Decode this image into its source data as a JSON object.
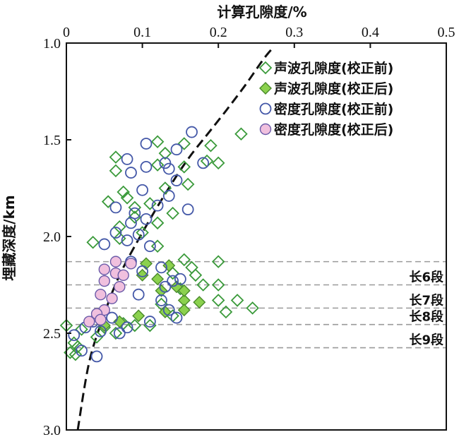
{
  "chart_data": {
    "type": "scatter",
    "title": "",
    "xlabel": "计算孔隙度/%",
    "ylabel": "埋藏深度/km",
    "xlim": [
      0,
      0.5
    ],
    "ylim": [
      1.0,
      3.0
    ],
    "y_inverted": true,
    "x_axis_position": "top",
    "x_ticks": [
      "0",
      "0.1",
      "0.2",
      "0.3",
      "0.4",
      "0.5"
    ],
    "y_ticks": [
      "1.0",
      "1.5",
      "2.0",
      "2.5",
      "3.0"
    ],
    "legend_position": "top-right",
    "series": [
      {
        "name": "声波孔隙度(校正前)",
        "marker": "diamond-open",
        "color": "#3a9a3a",
        "points": [
          [
            0.12,
            1.51
          ],
          [
            0.065,
            1.59
          ],
          [
            0.13,
            1.57
          ],
          [
            0.155,
            1.52
          ],
          [
            0.19,
            1.53
          ],
          [
            0.23,
            1.47
          ],
          [
            0.065,
            1.66
          ],
          [
            0.12,
            1.63
          ],
          [
            0.155,
            1.64
          ],
          [
            0.2,
            1.62
          ],
          [
            0.185,
            1.61
          ],
          [
            0.16,
            1.73
          ],
          [
            0.075,
            1.77
          ],
          [
            0.13,
            1.75
          ],
          [
            0.08,
            1.8
          ],
          [
            0.055,
            1.82
          ],
          [
            0.09,
            1.85
          ],
          [
            0.11,
            1.83
          ],
          [
            0.14,
            1.88
          ],
          [
            0.09,
            1.9
          ],
          [
            0.07,
            1.95
          ],
          [
            0.12,
            1.93
          ],
          [
            0.1,
            1.98
          ],
          [
            0.035,
            2.03
          ],
          [
            0.07,
            2.01
          ],
          [
            0.12,
            2.05
          ],
          [
            0.155,
            2.12
          ],
          [
            0.2,
            2.13
          ],
          [
            0.165,
            2.16
          ],
          [
            0.17,
            2.2
          ],
          [
            0.14,
            2.19
          ],
          [
            0.18,
            2.25
          ],
          [
            0.2,
            2.25
          ],
          [
            0.15,
            2.27
          ],
          [
            0.125,
            2.35
          ],
          [
            0.2,
            2.33
          ],
          [
            0.225,
            2.33
          ],
          [
            0.245,
            2.37
          ],
          [
            0.21,
            2.39
          ],
          [
            0.14,
            2.41
          ],
          [
            0.11,
            2.46
          ],
          [
            0.09,
            2.46
          ],
          [
            0.065,
            2.5
          ],
          [
            0.075,
            2.45
          ],
          [
            0.05,
            2.47
          ],
          [
            0.04,
            2.52
          ],
          [
            0.02,
            2.48
          ],
          [
            0.01,
            2.55
          ],
          [
            0.005,
            2.6
          ],
          [
            0.012,
            2.61
          ],
          [
            0.0,
            2.46
          ],
          [
            0.015,
            2.57
          ]
        ]
      },
      {
        "name": "声波孔隙度(校正后)",
        "marker": "diamond-filled",
        "color": "#8bd14e",
        "points": [
          [
            0.105,
            2.14
          ],
          [
            0.135,
            2.15
          ],
          [
            0.1,
            2.2
          ],
          [
            0.12,
            2.22
          ],
          [
            0.125,
            2.28
          ],
          [
            0.145,
            2.26
          ],
          [
            0.155,
            2.33
          ],
          [
            0.175,
            2.34
          ],
          [
            0.155,
            2.38
          ],
          [
            0.13,
            2.39
          ],
          [
            0.095,
            2.41
          ],
          [
            0.07,
            2.44
          ],
          [
            0.05,
            2.46
          ],
          [
            0.155,
            2.28
          ]
        ]
      },
      {
        "name": "密度孔隙度(校正前)",
        "marker": "circle-open",
        "color": "#4458a8",
        "points": [
          [
            0.165,
            1.46
          ],
          [
            0.105,
            1.52
          ],
          [
            0.145,
            1.55
          ],
          [
            0.08,
            1.6
          ],
          [
            0.13,
            1.62
          ],
          [
            0.105,
            1.64
          ],
          [
            0.085,
            1.67
          ],
          [
            0.135,
            1.65
          ],
          [
            0.18,
            1.62
          ],
          [
            0.145,
            1.71
          ],
          [
            0.1,
            1.76
          ],
          [
            0.135,
            1.79
          ],
          [
            0.12,
            1.84
          ],
          [
            0.09,
            1.88
          ],
          [
            0.16,
            1.86
          ],
          [
            0.065,
            1.85
          ],
          [
            0.085,
            1.93
          ],
          [
            0.105,
            1.91
          ],
          [
            0.065,
            1.98
          ],
          [
            0.095,
            1.99
          ],
          [
            0.08,
            2.02
          ],
          [
            0.05,
            2.04
          ],
          [
            0.11,
            2.05
          ],
          [
            0.085,
            2.13
          ],
          [
            0.125,
            2.16
          ],
          [
            0.1,
            2.18
          ],
          [
            0.14,
            2.23
          ],
          [
            0.15,
            2.22
          ],
          [
            0.13,
            2.26
          ],
          [
            0.095,
            2.3
          ],
          [
            0.125,
            2.33
          ],
          [
            0.135,
            2.38
          ],
          [
            0.145,
            2.42
          ],
          [
            0.11,
            2.44
          ],
          [
            0.08,
            2.47
          ],
          [
            0.06,
            2.42
          ],
          [
            0.035,
            2.44
          ],
          [
            0.025,
            2.47
          ],
          [
            0.01,
            2.51
          ],
          [
            0.02,
            2.59
          ],
          [
            0.04,
            2.62
          ],
          [
            0.045,
            2.49
          ],
          [
            0.07,
            2.5
          ]
        ]
      },
      {
        "name": "密度孔隙度(校正后)",
        "marker": "circle-filled",
        "color": "#f0c0de",
        "points": [
          [
            0.065,
            2.13
          ],
          [
            0.085,
            2.14
          ],
          [
            0.05,
            2.17
          ],
          [
            0.065,
            2.19
          ],
          [
            0.075,
            2.2
          ],
          [
            0.05,
            2.23
          ],
          [
            0.07,
            2.26
          ],
          [
            0.045,
            2.3
          ],
          [
            0.06,
            2.32
          ],
          [
            0.05,
            2.38
          ],
          [
            0.04,
            2.4
          ],
          [
            0.045,
            2.43
          ],
          [
            0.03,
            2.44
          ]
        ]
      }
    ],
    "trend_line": {
      "style": "dashed",
      "color": "#111111",
      "points": [
        [
          0.015,
          3.0
        ],
        [
          0.03,
          2.65
        ],
        [
          0.05,
          2.4
        ],
        [
          0.07,
          2.2
        ],
        [
          0.1,
          1.98
        ],
        [
          0.13,
          1.78
        ],
        [
          0.16,
          1.6
        ],
        [
          0.19,
          1.45
        ],
        [
          0.21,
          1.35
        ],
        [
          0.235,
          1.22
        ],
        [
          0.26,
          1.08
        ],
        [
          0.273,
          1.02
        ]
      ]
    },
    "segment_lines": [
      {
        "depth": 2.13,
        "label": ""
      },
      {
        "depth": 2.25,
        "label": "长6段"
      },
      {
        "depth": 2.37,
        "label": "长7段"
      },
      {
        "depth": 2.455,
        "label": "长8段"
      },
      {
        "depth": 2.575,
        "label": "长9段"
      }
    ]
  }
}
